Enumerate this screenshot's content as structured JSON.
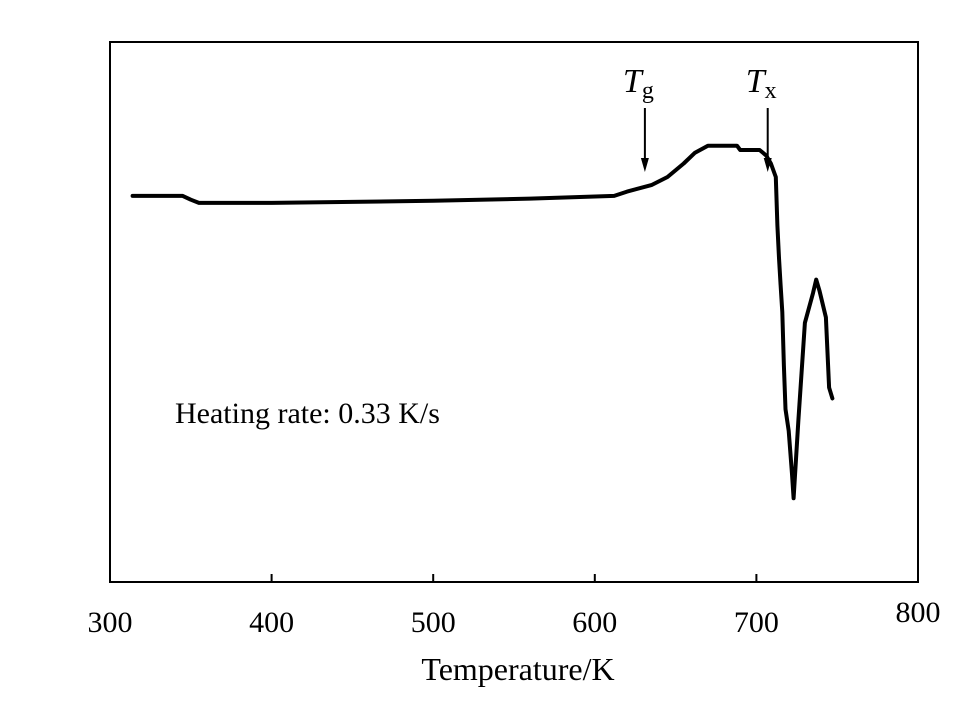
{
  "chart_data": {
    "type": "line",
    "title": "",
    "xlabel": "Temperature/K",
    "ylabel": "",
    "xlim": [
      300,
      800
    ],
    "xticks": [
      300,
      400,
      500,
      600,
      700,
      800
    ],
    "x_tick_labels": [
      "300",
      "400",
      "500",
      "600",
      "700",
      "800"
    ],
    "y_axis_labeled": false,
    "y_scale": "relative signal (arbitrary units)",
    "grid": false,
    "legend": "none",
    "series": [
      {
        "values_note": "DSC trace read off the plot; y in relative units (0 = bottom of frame, 100 = top of frame)",
        "points": [
          [
            314,
            71.5
          ],
          [
            345,
            71.5
          ],
          [
            350,
            70.8
          ],
          [
            355,
            70.2
          ],
          [
            400,
            70.2
          ],
          [
            500,
            70.6
          ],
          [
            560,
            71.0
          ],
          [
            612,
            71.5
          ],
          [
            620,
            72.3
          ],
          [
            635,
            73.5
          ],
          [
            645,
            75.0
          ],
          [
            655,
            77.5
          ],
          [
            662,
            79.5
          ],
          [
            670,
            80.8
          ],
          [
            688,
            80.8
          ],
          [
            690,
            80.0
          ],
          [
            702,
            80.0
          ],
          [
            706,
            79.0
          ],
          [
            709,
            77.5
          ],
          [
            712,
            75.0
          ],
          [
            713,
            66.0
          ],
          [
            714,
            60.0
          ],
          [
            715,
            55.0
          ],
          [
            716,
            50.0
          ],
          [
            717,
            40.0
          ],
          [
            718,
            32.0
          ],
          [
            720,
            28.0
          ],
          [
            722,
            20.0
          ],
          [
            723,
            15.5
          ],
          [
            726,
            30.0
          ],
          [
            730,
            48.0
          ],
          [
            735,
            53.5
          ],
          [
            737,
            56.0
          ],
          [
            739,
            54.0
          ],
          [
            743,
            49.0
          ],
          [
            745,
            36.0
          ],
          [
            747,
            34.0
          ]
        ]
      }
    ],
    "annotations": [
      {
        "symbol": "T",
        "subscript": "g",
        "x": 631,
        "arrow": "down"
      },
      {
        "symbol": "T",
        "subscript": "x",
        "x": 707,
        "arrow": "down"
      }
    ],
    "inset_text": "Heating rate: 0.33 K/s"
  }
}
